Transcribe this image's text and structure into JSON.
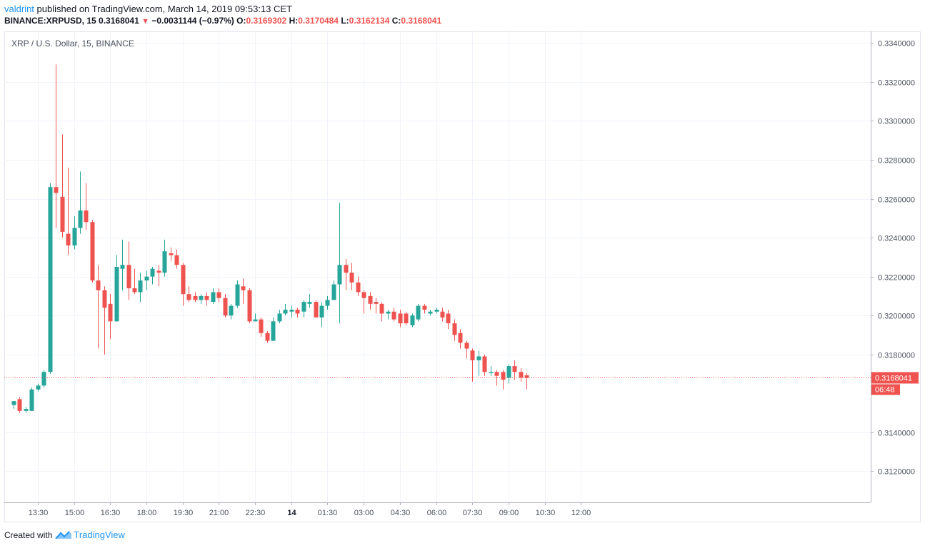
{
  "header": {
    "author": "valdrint",
    "published_text": "published on TradingView.com, March 14, 2019 09:53:13 CET",
    "symbol_interval": "BINANCE:XRPUSD, 15",
    "last_price": "0.3168041",
    "change_arrow": "▼",
    "change": "−0.0031144 (−0.97%)",
    "o_label": "O:",
    "o_value": "0.3169302",
    "h_label": "H:",
    "h_value": "0.3170484",
    "l_label": "L:",
    "l_value": "0.3162134",
    "c_label": "C:",
    "c_value": "0.3168041"
  },
  "chart_data": {
    "type": "candlestick",
    "title": "XRP / U.S. Dollar, 15, BINANCE",
    "y_axis": {
      "range": [
        0.3104,
        0.3346
      ],
      "ticks": [
        "0.3340000",
        "0.3320000",
        "0.3300000",
        "0.3280000",
        "0.3260000",
        "0.3240000",
        "0.3220000",
        "0.3200000",
        "0.3180000",
        "0.3140000",
        "0.3120000"
      ]
    },
    "x_axis": {
      "ticks": [
        "13:30",
        "15:00",
        "16:30",
        "18:00",
        "19:30",
        "21:00",
        "22:30",
        "14",
        "01:30",
        "03:00",
        "04:30",
        "06:00",
        "07:30",
        "09:00",
        "10:30",
        "12:00"
      ],
      "bold_tick": "14",
      "time_range": [
        0,
        142
      ]
    },
    "last_price_label": "0.3168041",
    "countdown_label": "06:48",
    "grid": true,
    "colors": {
      "up": "#26a69a",
      "down": "#ef5350",
      "grid": "#f0f3fa",
      "axis_text": "#4c525e"
    },
    "candles": [
      {
        "t": 0,
        "o": 0.3154,
        "h": 0.3156,
        "l": 0.3152,
        "c": 0.3156
      },
      {
        "t": 1,
        "o": 0.3157,
        "h": 0.3158,
        "l": 0.315,
        "c": 0.3151
      },
      {
        "t": 2,
        "o": 0.3151,
        "h": 0.3153,
        "l": 0.315,
        "c": 0.3152
      },
      {
        "t": 3,
        "o": 0.3151,
        "h": 0.3163,
        "l": 0.3151,
        "c": 0.3162
      },
      {
        "t": 4,
        "o": 0.3162,
        "h": 0.3165,
        "l": 0.3161,
        "c": 0.3164
      },
      {
        "t": 5,
        "o": 0.3164,
        "h": 0.3172,
        "l": 0.3163,
        "c": 0.3171
      },
      {
        "t": 6,
        "o": 0.3171,
        "h": 0.3268,
        "l": 0.317,
        "c": 0.3266
      },
      {
        "t": 7,
        "o": 0.3266,
        "h": 0.3329,
        "l": 0.3245,
        "c": 0.3263
      },
      {
        "t": 8,
        "o": 0.3261,
        "h": 0.3293,
        "l": 0.324,
        "c": 0.3243
      },
      {
        "t": 9,
        "o": 0.3242,
        "h": 0.3276,
        "l": 0.3231,
        "c": 0.3236
      },
      {
        "t": 10,
        "o": 0.3236,
        "h": 0.3251,
        "l": 0.3234,
        "c": 0.3245
      },
      {
        "t": 11,
        "o": 0.3245,
        "h": 0.3274,
        "l": 0.3242,
        "c": 0.3254
      },
      {
        "t": 12,
        "o": 0.3254,
        "h": 0.3268,
        "l": 0.3244,
        "c": 0.3248
      },
      {
        "t": 13,
        "o": 0.3248,
        "h": 0.3249,
        "l": 0.3217,
        "c": 0.3218
      },
      {
        "t": 14,
        "o": 0.3218,
        "h": 0.3226,
        "l": 0.3183,
        "c": 0.3213
      },
      {
        "t": 15,
        "o": 0.3213,
        "h": 0.3215,
        "l": 0.318,
        "c": 0.3204
      },
      {
        "t": 16,
        "o": 0.3206,
        "h": 0.3211,
        "l": 0.3188,
        "c": 0.3197
      },
      {
        "t": 17,
        "o": 0.3197,
        "h": 0.3231,
        "l": 0.3197,
        "c": 0.3225
      },
      {
        "t": 18,
        "o": 0.3224,
        "h": 0.3239,
        "l": 0.3213,
        "c": 0.3226
      },
      {
        "t": 19,
        "o": 0.3226,
        "h": 0.3238,
        "l": 0.3208,
        "c": 0.3214
      },
      {
        "t": 20,
        "o": 0.3214,
        "h": 0.3224,
        "l": 0.3211,
        "c": 0.3212
      },
      {
        "t": 21,
        "o": 0.3212,
        "h": 0.3222,
        "l": 0.3207,
        "c": 0.3218
      },
      {
        "t": 22,
        "o": 0.3218,
        "h": 0.3223,
        "l": 0.3213,
        "c": 0.322
      },
      {
        "t": 23,
        "o": 0.322,
        "h": 0.3225,
        "l": 0.3216,
        "c": 0.3224
      },
      {
        "t": 24,
        "o": 0.3223,
        "h": 0.3226,
        "l": 0.3215,
        "c": 0.3222
      },
      {
        "t": 25,
        "o": 0.3222,
        "h": 0.3239,
        "l": 0.322,
        "c": 0.3233
      },
      {
        "t": 26,
        "o": 0.3232,
        "h": 0.3235,
        "l": 0.3228,
        "c": 0.3231
      },
      {
        "t": 27,
        "o": 0.3231,
        "h": 0.3234,
        "l": 0.3224,
        "c": 0.3226
      },
      {
        "t": 28,
        "o": 0.3226,
        "h": 0.3227,
        "l": 0.3205,
        "c": 0.3211
      },
      {
        "t": 29,
        "o": 0.3211,
        "h": 0.3215,
        "l": 0.3207,
        "c": 0.3208
      },
      {
        "t": 30,
        "o": 0.321,
        "h": 0.3212,
        "l": 0.3207,
        "c": 0.3208
      },
      {
        "t": 31,
        "o": 0.3208,
        "h": 0.3211,
        "l": 0.3206,
        "c": 0.321
      },
      {
        "t": 32,
        "o": 0.321,
        "h": 0.3212,
        "l": 0.3205,
        "c": 0.3208
      },
      {
        "t": 33,
        "o": 0.3207,
        "h": 0.3214,
        "l": 0.3206,
        "c": 0.3212
      },
      {
        "t": 34,
        "o": 0.3212,
        "h": 0.3214,
        "l": 0.3207,
        "c": 0.3209
      },
      {
        "t": 35,
        "o": 0.3209,
        "h": 0.3211,
        "l": 0.3199,
        "c": 0.32
      },
      {
        "t": 36,
        "o": 0.32,
        "h": 0.3206,
        "l": 0.3198,
        "c": 0.3205
      },
      {
        "t": 37,
        "o": 0.3205,
        "h": 0.3218,
        "l": 0.3204,
        "c": 0.3216
      },
      {
        "t": 38,
        "o": 0.3215,
        "h": 0.3219,
        "l": 0.3206,
        "c": 0.3213
      },
      {
        "t": 39,
        "o": 0.3213,
        "h": 0.3214,
        "l": 0.3196,
        "c": 0.3197
      },
      {
        "t": 40,
        "o": 0.3197,
        "h": 0.3201,
        "l": 0.3197,
        "c": 0.3198
      },
      {
        "t": 41,
        "o": 0.3198,
        "h": 0.3199,
        "l": 0.3189,
        "c": 0.3191
      },
      {
        "t": 42,
        "o": 0.3191,
        "h": 0.3192,
        "l": 0.3186,
        "c": 0.3187
      },
      {
        "t": 43,
        "o": 0.3187,
        "h": 0.3199,
        "l": 0.3187,
        "c": 0.3197
      },
      {
        "t": 44,
        "o": 0.3197,
        "h": 0.3203,
        "l": 0.3196,
        "c": 0.3201
      },
      {
        "t": 45,
        "o": 0.3201,
        "h": 0.3206,
        "l": 0.32,
        "c": 0.3203
      },
      {
        "t": 46,
        "o": 0.3202,
        "h": 0.3205,
        "l": 0.3199,
        "c": 0.3203
      },
      {
        "t": 47,
        "o": 0.3203,
        "h": 0.3204,
        "l": 0.3199,
        "c": 0.3201
      },
      {
        "t": 48,
        "o": 0.3202,
        "h": 0.3208,
        "l": 0.3199,
        "c": 0.3207
      },
      {
        "t": 49,
        "o": 0.3206,
        "h": 0.3211,
        "l": 0.3204,
        "c": 0.3207
      },
      {
        "t": 50,
        "o": 0.3207,
        "h": 0.3208,
        "l": 0.3199,
        "c": 0.3199
      },
      {
        "t": 51,
        "o": 0.3199,
        "h": 0.3207,
        "l": 0.3194,
        "c": 0.3205
      },
      {
        "t": 52,
        "o": 0.3205,
        "h": 0.321,
        "l": 0.3203,
        "c": 0.3208
      },
      {
        "t": 53,
        "o": 0.3208,
        "h": 0.3218,
        "l": 0.3208,
        "c": 0.3216
      },
      {
        "t": 54,
        "o": 0.3216,
        "h": 0.3258,
        "l": 0.3196,
        "c": 0.3226
      },
      {
        "t": 55,
        "o": 0.3226,
        "h": 0.3229,
        "l": 0.3213,
        "c": 0.3222
      },
      {
        "t": 56,
        "o": 0.3222,
        "h": 0.3227,
        "l": 0.3213,
        "c": 0.3217
      },
      {
        "t": 57,
        "o": 0.3217,
        "h": 0.322,
        "l": 0.321,
        "c": 0.3212
      },
      {
        "t": 58,
        "o": 0.3212,
        "h": 0.3213,
        "l": 0.3201,
        "c": 0.3209
      },
      {
        "t": 59,
        "o": 0.321,
        "h": 0.3212,
        "l": 0.3203,
        "c": 0.3206
      },
      {
        "t": 60,
        "o": 0.3207,
        "h": 0.3209,
        "l": 0.3201,
        "c": 0.3206
      },
      {
        "t": 61,
        "o": 0.3206,
        "h": 0.3207,
        "l": 0.3197,
        "c": 0.3201
      },
      {
        "t": 62,
        "o": 0.3201,
        "h": 0.3203,
        "l": 0.3198,
        "c": 0.3202
      },
      {
        "t": 63,
        "o": 0.3202,
        "h": 0.3204,
        "l": 0.3197,
        "c": 0.3198
      },
      {
        "t": 64,
        "o": 0.3201,
        "h": 0.3203,
        "l": 0.3194,
        "c": 0.3196
      },
      {
        "t": 65,
        "o": 0.3201,
        "h": 0.3202,
        "l": 0.3195,
        "c": 0.3196
      },
      {
        "t": 66,
        "o": 0.3195,
        "h": 0.3201,
        "l": 0.3194,
        "c": 0.32
      },
      {
        "t": 67,
        "o": 0.3198,
        "h": 0.3206,
        "l": 0.3197,
        "c": 0.3205
      },
      {
        "t": 68,
        "o": 0.3205,
        "h": 0.3206,
        "l": 0.3201,
        "c": 0.3203
      },
      {
        "t": 69,
        "o": 0.3201,
        "h": 0.3203,
        "l": 0.32,
        "c": 0.3202
      },
      {
        "t": 70,
        "o": 0.3202,
        "h": 0.3204,
        "l": 0.3201,
        "c": 0.3203
      },
      {
        "t": 71,
        "o": 0.3202,
        "h": 0.3204,
        "l": 0.3197,
        "c": 0.3199
      },
      {
        "t": 72,
        "o": 0.3201,
        "h": 0.3203,
        "l": 0.3193,
        "c": 0.3196
      },
      {
        "t": 73,
        "o": 0.3196,
        "h": 0.3198,
        "l": 0.3187,
        "c": 0.319
      },
      {
        "t": 74,
        "o": 0.3191,
        "h": 0.3193,
        "l": 0.3183,
        "c": 0.3186
      },
      {
        "t": 75,
        "o": 0.3186,
        "h": 0.3187,
        "l": 0.3178,
        "c": 0.3183
      },
      {
        "t": 76,
        "o": 0.3182,
        "h": 0.3183,
        "l": 0.3166,
        "c": 0.3177
      },
      {
        "t": 77,
        "o": 0.3177,
        "h": 0.3182,
        "l": 0.3169,
        "c": 0.3179
      },
      {
        "t": 78,
        "o": 0.3179,
        "h": 0.318,
        "l": 0.3169,
        "c": 0.3171
      },
      {
        "t": 79,
        "o": 0.3171,
        "h": 0.3174,
        "l": 0.3169,
        "c": 0.3171
      },
      {
        "t": 80,
        "o": 0.3171,
        "h": 0.3172,
        "l": 0.3164,
        "c": 0.3169
      },
      {
        "t": 81,
        "o": 0.3171,
        "h": 0.3172,
        "l": 0.3162,
        "c": 0.3167
      },
      {
        "t": 82,
        "o": 0.3168,
        "h": 0.3175,
        "l": 0.3165,
        "c": 0.3174
      },
      {
        "t": 83,
        "o": 0.3174,
        "h": 0.3177,
        "l": 0.3167,
        "c": 0.3171
      },
      {
        "t": 84,
        "o": 0.3171,
        "h": 0.3173,
        "l": 0.3166,
        "c": 0.3168
      },
      {
        "t": 85,
        "o": 0.3169302,
        "h": 0.3170484,
        "l": 0.3162134,
        "c": 0.3168041
      }
    ]
  },
  "footer": {
    "created_with": "Created with",
    "brand": "TradingView"
  }
}
